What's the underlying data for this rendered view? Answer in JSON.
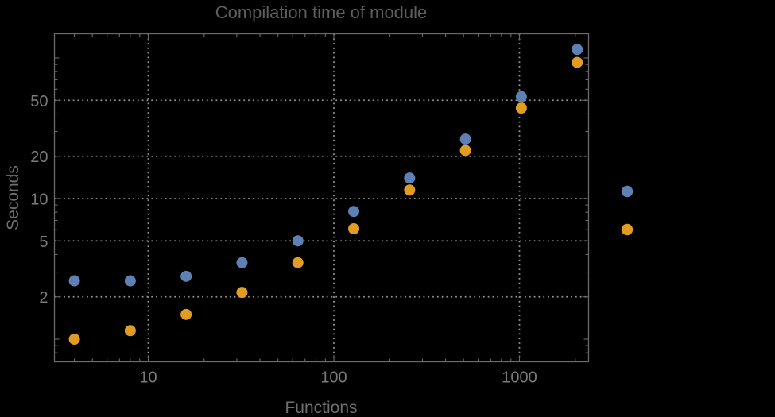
{
  "chart_data": {
    "type": "scatter",
    "title": "Compilation time of module",
    "xlabel": "Functions",
    "ylabel": "Seconds",
    "x_scale": "log",
    "y_scale": "log",
    "x_range": [
      3.1,
      2360
    ],
    "y_range": [
      0.69,
      150
    ],
    "x_tick_labels": [
      "10",
      "100",
      "1000"
    ],
    "x_tick_values": [
      10,
      100,
      1000
    ],
    "x_minor_ticks": [
      4,
      5,
      6,
      7,
      8,
      9,
      20,
      30,
      40,
      50,
      60,
      70,
      80,
      90,
      200,
      300,
      400,
      500,
      600,
      700,
      800,
      900,
      2000
    ],
    "y_tick_labels": [
      "2",
      "5",
      "10",
      "20",
      "50"
    ],
    "y_tick_values": [
      2,
      5,
      10,
      20,
      50
    ],
    "y_minor_ticks": [
      0.8,
      0.9,
      1,
      3,
      4,
      6,
      7,
      8,
      9,
      30,
      40,
      60,
      70,
      80,
      90,
      100
    ],
    "grid": {
      "style": "dotted",
      "color": "#919191",
      "at_x": [
        10,
        100,
        1000
      ],
      "at_y": [
        2,
        5,
        10,
        20,
        50
      ]
    },
    "series": [
      {
        "name": "series-1-blue",
        "color": "#5e81b5",
        "points": [
          [
            4,
            2.6
          ],
          [
            8,
            2.6
          ],
          [
            16,
            2.8
          ],
          [
            32,
            3.5
          ],
          [
            64,
            5.0
          ],
          [
            128,
            8.1
          ],
          [
            256,
            14
          ],
          [
            512,
            26.5
          ],
          [
            1024,
            53
          ],
          [
            2048,
            115
          ]
        ]
      },
      {
        "name": "series-2-orange",
        "color": "#e19c24",
        "points": [
          [
            4,
            1.0
          ],
          [
            8,
            1.15
          ],
          [
            16,
            1.5
          ],
          [
            32,
            2.15
          ],
          [
            64,
            3.5
          ],
          [
            128,
            6.1
          ],
          [
            256,
            11.5
          ],
          [
            512,
            22
          ],
          [
            1024,
            44
          ],
          [
            2048,
            93
          ]
        ]
      }
    ],
    "legend": {
      "labels_visible": false,
      "position": "right",
      "entries": [
        {
          "series": "series-1-blue",
          "color": "#5e81b5"
        },
        {
          "series": "series-2-orange",
          "color": "#e19c24"
        }
      ]
    }
  },
  "colors": {
    "background": "#000000",
    "frame": "#6a6a6a",
    "tick": "#6a6a6a",
    "tick_label": "#7a7a7a",
    "title": "#5e5e5e",
    "axis_label": "#6f6f6f",
    "grid": "#919191"
  }
}
